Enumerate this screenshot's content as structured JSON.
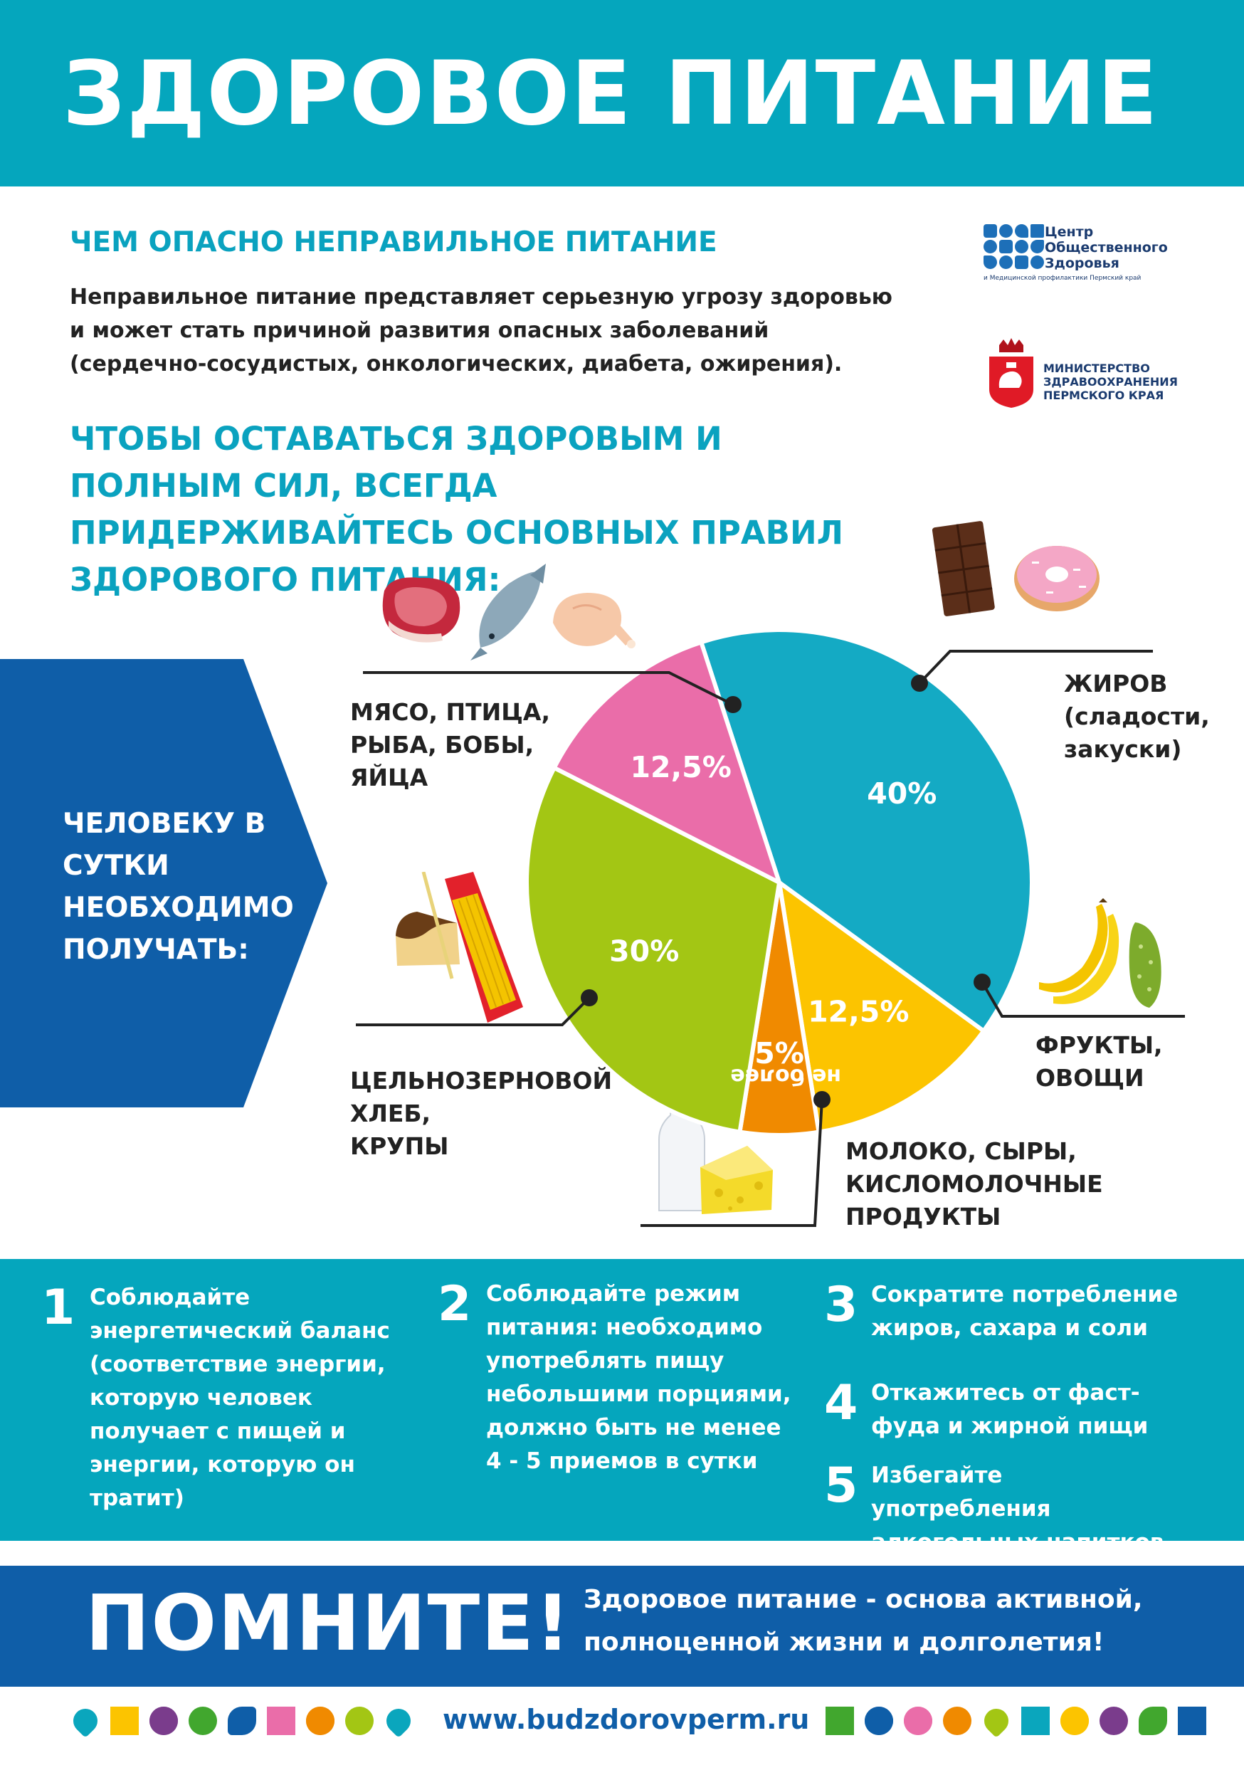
{
  "header": {
    "title": "ЗДОРОВОЕ ПИТАНИЕ"
  },
  "intro": {
    "heading": "ЧЕМ ОПАСНО НЕПРАВИЛЬНОЕ ПИТАНИЕ",
    "text": "Неправильное питание представляет серьезную угрозу здоровью и может стать причиной развития опасных заболеваний (сердечно-сосудистых, онкологических, диабета, ожирения)."
  },
  "rules_heading": "ЧТОБЫ ОСТАВАТЬСЯ ЗДОРОВЫМ И ПОЛНЫМ СИЛ, ВСЕГДА ПРИДЕРЖИВАЙТЕСЬ ОСНОВНЫХ ПРАВИЛ ЗДОРОВОГО ПИТАНИЯ:",
  "logos": {
    "center_name": "Центр Общественного Здоровья",
    "center_sub": "и Медицинской профилактики Пермский край",
    "ministry": "МИНИСТЕРСТВО ЗДРАВООХРАНЕНИЯ ПЕРМСКОГО КРАЯ"
  },
  "arrow_text": "ЧЕЛОВЕКУ В СУТКИ НЕОБХОДИМО ПОЛУЧАТЬ:",
  "colors": {
    "teal": "#05a6bd",
    "blue": "#0f5ea8",
    "pie_bread": "#14aac4",
    "pie_meat": "#fcc400",
    "pie_fat": "#f08a00",
    "pie_fruit": "#a3c614",
    "pie_milk": "#ea6da9"
  },
  "chart_data": {
    "type": "pie",
    "title": "",
    "slices": [
      {
        "name": "ЦЕЛЬНОЗЕРНОВОЙ ХЛЕБ, КРУПЫ",
        "value": 40,
        "label": "40%",
        "color": "#14aac4",
        "icons": [
          "bread-icon",
          "pasta-icon"
        ]
      },
      {
        "name": "МЯСО, ПТИЦА, РЫБА, БОБЫ, ЯЙЦА",
        "value": 12.5,
        "label": "12,5%",
        "color": "#fcc400",
        "icons": [
          "meat-icon",
          "fish-icon",
          "chicken-icon"
        ]
      },
      {
        "name": "ЖИРОВ (сладости, закуски)",
        "value": 5,
        "label": "5%",
        "prefix": "не более",
        "color": "#f08a00",
        "icons": [
          "chocolate-icon",
          "donut-icon"
        ]
      },
      {
        "name": "ФРУКТЫ, ОВОЩИ",
        "value": 30,
        "label": "30%",
        "color": "#a3c614",
        "icons": [
          "banana-icon",
          "cucumber-icon"
        ]
      },
      {
        "name": "МОЛОКО, СЫРЫ, КИСЛОМОЛОЧНЫЕ ПРОДУКТЫ",
        "value": 12.5,
        "label": "12,5%",
        "color": "#ea6da9",
        "icons": [
          "milk-icon",
          "cheese-icon"
        ]
      }
    ]
  },
  "categories": {
    "meat": [
      "МЯСО, ПТИЦА,",
      "РЫБА, БОБЫ,",
      "ЯЙЦА"
    ],
    "fat": [
      "ЖИРОВ",
      "(сладости,",
      "закуски)"
    ],
    "fruit": [
      "ФРУКТЫ,",
      "ОВОЩИ"
    ],
    "milk": [
      "МОЛОКО, СЫРЫ,",
      "КИСЛОМОЛОЧНЫЕ",
      "ПРОДУКТЫ"
    ],
    "bread": [
      "ЦЕЛЬНОЗЕРНОВОЙ",
      "ХЛЕБ,",
      "КРУПЫ"
    ]
  },
  "tips": [
    {
      "num": "1",
      "text": "Соблюдайте энергетический баланс (соответствие энергии, которую человек получает с пищей и энергии, которую он тратит)"
    },
    {
      "num": "2",
      "text": "Соблюдайте режим питания: необходимо употреблять пищу небольшими порциями, должно быть не менее 4 - 5 приемов в сутки"
    },
    {
      "num": "3",
      "text": "Сократите потребление жиров, сахара и соли"
    },
    {
      "num": "4",
      "text": "Откажитесь от фаст-фуда и жирной пищи"
    },
    {
      "num": "5",
      "text": "Избегайте употребления алкогольных напитков"
    }
  ],
  "remember": {
    "heading": "ПОМНИТЕ!",
    "text": "Здоровое питание - основа активной, полноценной жизни и долголетия!"
  },
  "footer": {
    "site": "www.budzdorovperm.ru",
    "left_shapes": [
      "heart-icon",
      "square-icon",
      "flower-icon",
      "circle-icon",
      "leaf-icon",
      "square-icon",
      "flower-icon",
      "circle-icon",
      "heart-icon"
    ],
    "right_shapes": [
      "square-icon",
      "flower-icon",
      "flower-icon",
      "circle-icon",
      "heart-icon",
      "square-icon",
      "flower-icon",
      "circle-icon",
      "leaf-icon",
      "square-icon"
    ]
  }
}
